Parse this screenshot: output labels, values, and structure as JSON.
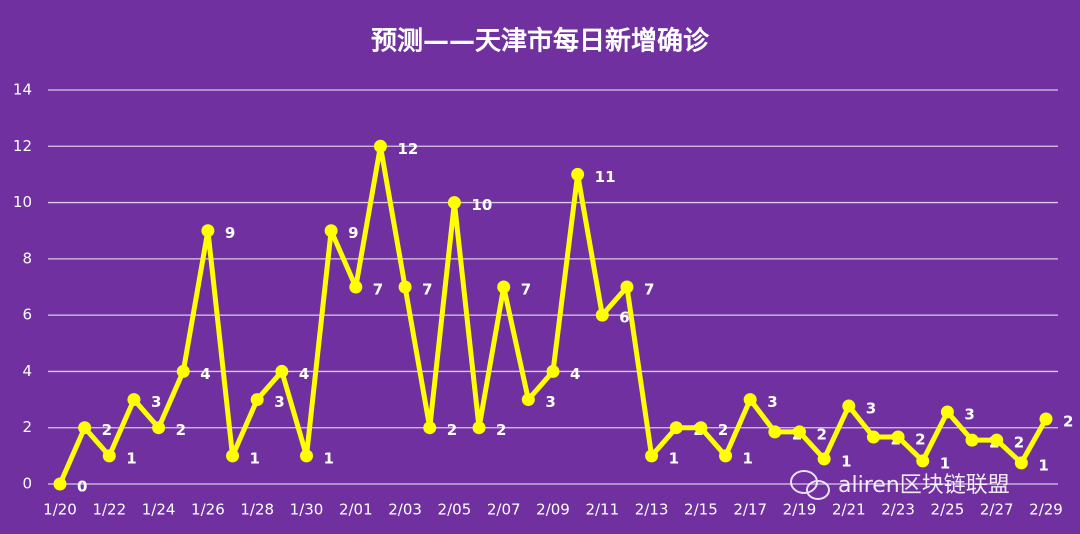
{
  "chart_data": {
    "type": "line",
    "title": "预测——天津市每日新增确诊",
    "categories": [
      "1/20",
      null,
      "1/22",
      null,
      "1/24",
      null,
      "1/26",
      null,
      "1/28",
      null,
      "1/30",
      null,
      "2/01",
      null,
      "2/03",
      null,
      "2/05",
      null,
      "2/07",
      null,
      "2/09",
      null,
      "2/11",
      null,
      "2/13",
      null,
      "2/15",
      null,
      "2/17",
      null,
      "2/19",
      null,
      "2/21",
      null,
      "2/23",
      null,
      "2/25",
      null,
      "2/27",
      null,
      "2/29"
    ],
    "series": [
      {
        "color": "#ffff00",
        "values": [
          0,
          2,
          1,
          3,
          2,
          4,
          9,
          1,
          3,
          4,
          1,
          9,
          7,
          12,
          7,
          2,
          10,
          2,
          7,
          3,
          4,
          11,
          6,
          7,
          1,
          2,
          2,
          1,
          3,
          1.85,
          1.85,
          0.89,
          2.77,
          1.67,
          1.67,
          0.82,
          2.56,
          1.56,
          1.56,
          0.75,
          2.31
        ],
        "value_labels": [
          "0",
          "2",
          "1",
          "3",
          "2",
          "4",
          "9",
          "1",
          "3",
          "4",
          "1",
          "9",
          "7",
          "12",
          "7",
          "2",
          "10",
          "2",
          "7",
          "3",
          "4",
          "11",
          "6",
          "7",
          "1",
          "2",
          "2",
          "1",
          "3",
          "2",
          "2",
          "1",
          "3",
          "2",
          "2",
          "1",
          "3",
          "2",
          "2",
          "1",
          "2"
        ]
      }
    ],
    "ylim": [
      0,
      14
    ],
    "yticks": [
      0,
      2,
      4,
      6,
      8,
      10,
      12,
      14
    ],
    "grid": true,
    "watermark": "aliren区块链联盟"
  }
}
